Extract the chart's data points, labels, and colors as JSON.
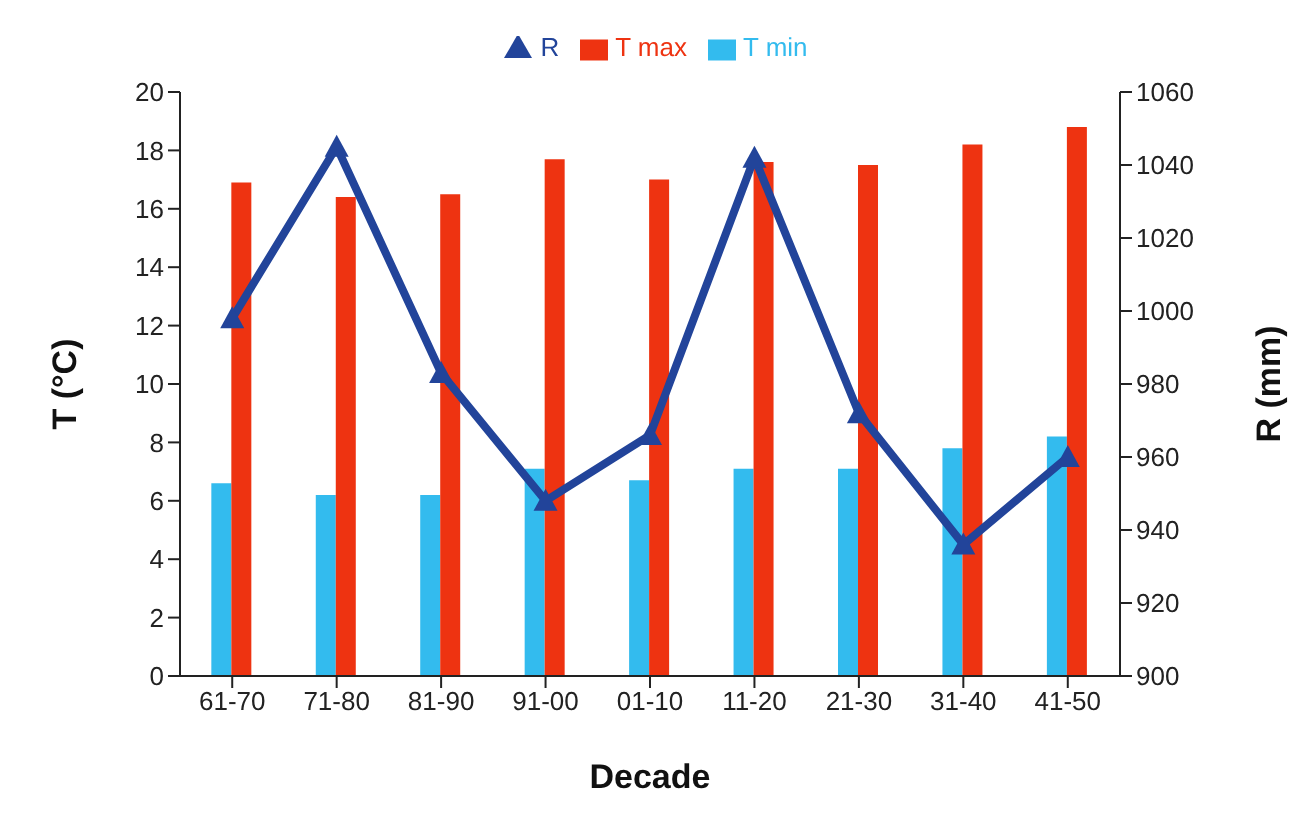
{
  "chart_data": {
    "type": "bar",
    "xlabel": "Decade",
    "ylabel": "T (°C)",
    "y2label": "R (mm)",
    "categories": [
      "61-70",
      "71-80",
      "81-90",
      "91-00",
      "01-10",
      "11-20",
      "21-30",
      "31-40",
      "41-50"
    ],
    "series": [
      {
        "name": "T min",
        "color": "#33bbee",
        "values": [
          6.6,
          6.2,
          6.2,
          7.1,
          6.7,
          7.1,
          7.1,
          7.8,
          8.2
        ]
      },
      {
        "name": "T max",
        "color": "#ee3311",
        "values": [
          16.9,
          16.4,
          16.5,
          17.7,
          17.0,
          17.6,
          17.5,
          18.2,
          18.8
        ]
      },
      {
        "name": "R",
        "type": "line",
        "axis": "y2",
        "color": "#22449a",
        "marker": "triangle",
        "values": [
          998,
          1045,
          983,
          948,
          966,
          1042,
          972,
          936,
          960
        ]
      }
    ],
    "ylim": [
      0,
      20
    ],
    "yticks": [
      0,
      2,
      4,
      6,
      8,
      10,
      12,
      14,
      16,
      18,
      20
    ],
    "y2lim": [
      900,
      1060
    ],
    "y2ticks": [
      900,
      920,
      940,
      960,
      980,
      1000,
      1020,
      1040,
      1060
    ],
    "legend": "top",
    "grid": false
  }
}
